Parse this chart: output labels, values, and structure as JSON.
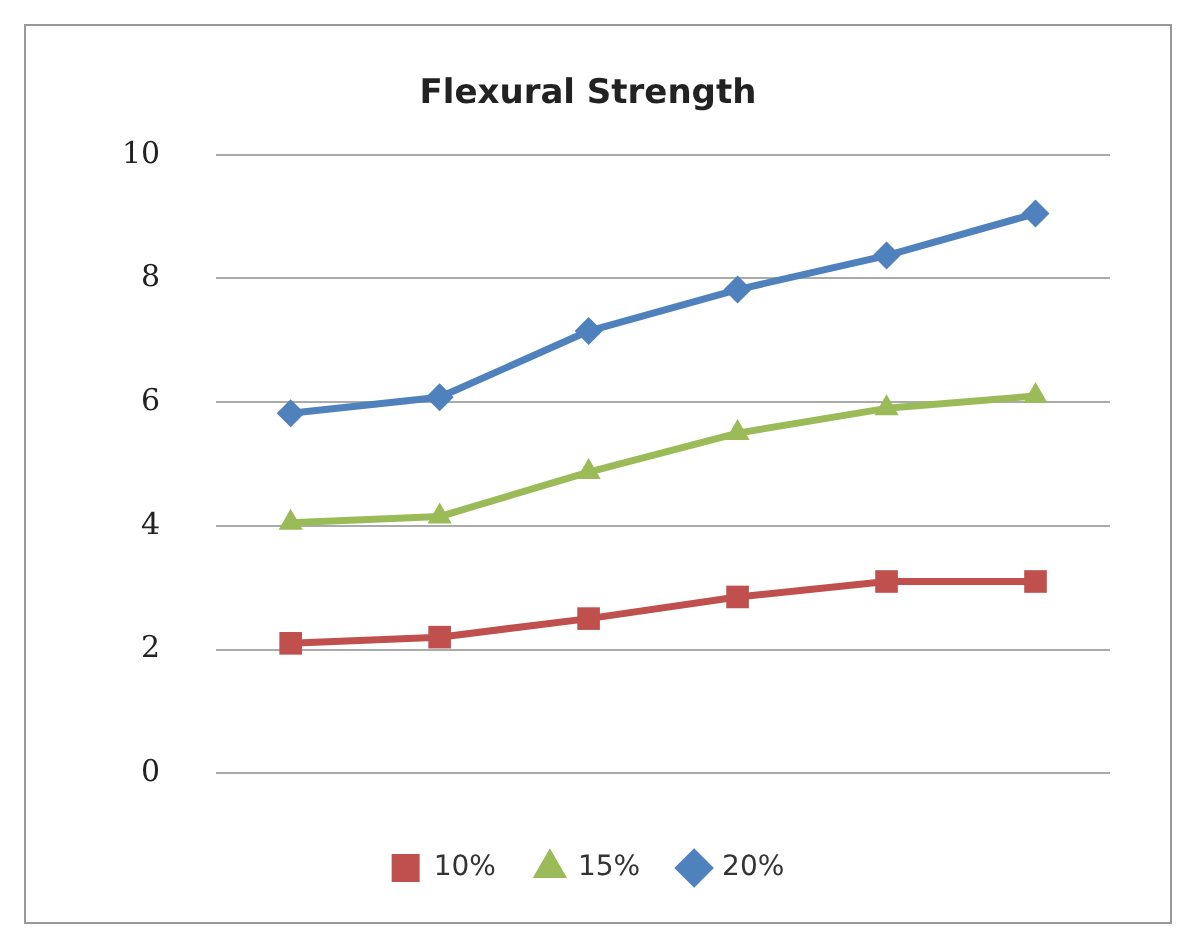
{
  "chart_data": {
    "type": "line",
    "title": "Flexural Strength",
    "categories": [
      null,
      null,
      null,
      null,
      null,
      null
    ],
    "series": [
      {
        "name": "10%",
        "color": "#c0504d",
        "marker": "square",
        "values": [
          2.1,
          2.2,
          2.5,
          2.85,
          3.1,
          3.1
        ]
      },
      {
        "name": "15%",
        "color": "#9bbb59",
        "marker": "triangle",
        "values": [
          4.05,
          4.15,
          4.87,
          5.5,
          5.9,
          6.1
        ]
      },
      {
        "name": "20%",
        "color": "#4f81bd",
        "marker": "diamond",
        "values": [
          5.82,
          6.08,
          7.15,
          7.82,
          8.37,
          9.05
        ]
      }
    ],
    "ylim": [
      0,
      10
    ],
    "yticks": [
      0,
      2,
      4,
      6,
      8,
      10
    ],
    "grid": "y",
    "legend": "bottom"
  }
}
